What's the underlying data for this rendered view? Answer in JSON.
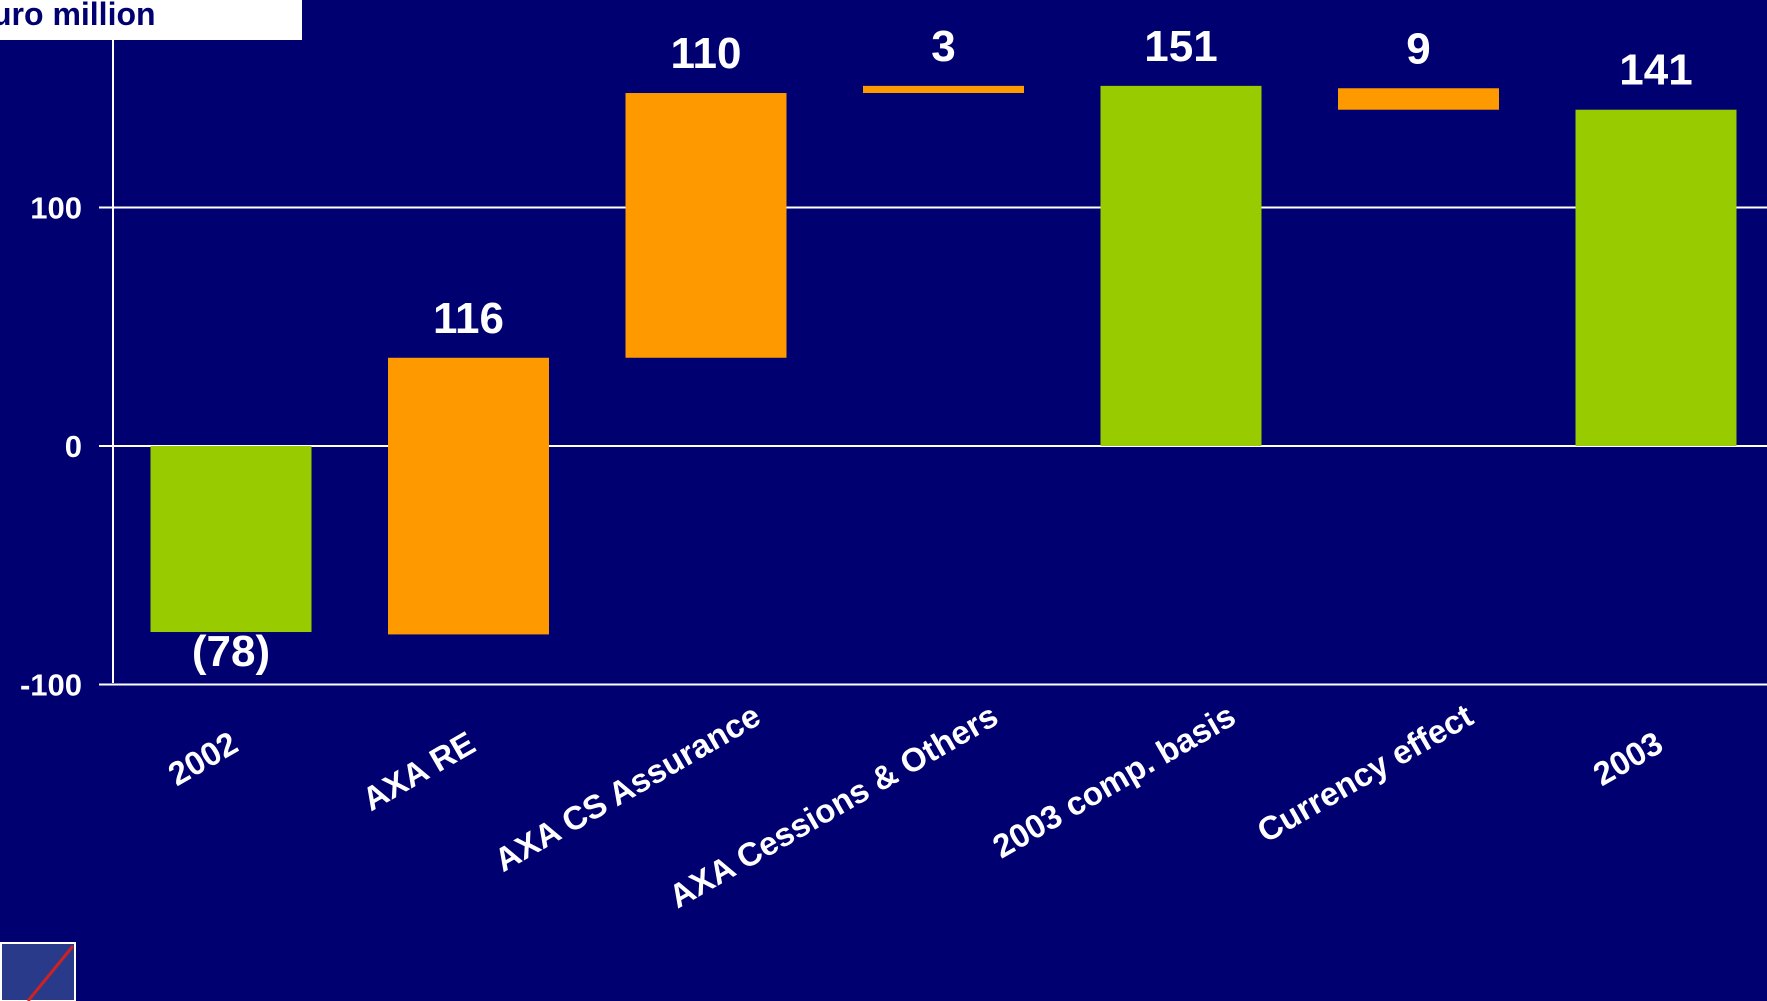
{
  "chart_data": {
    "type": "bar",
    "subtype": "waterfall",
    "unit_label": "uro million",
    "y_axis": {
      "ticks": [
        100,
        0,
        -100
      ],
      "tick_labels": [
        "100",
        "0",
        "-100"
      ],
      "ylim": [
        -100,
        172
      ],
      "grid": true
    },
    "categories": [
      "2002",
      "AXA RE",
      "AXA CS Assurance",
      "AXA Cessions & Others",
      "2003 comp. basis",
      "Currency effect",
      "2003"
    ],
    "bars": [
      {
        "category": "2002",
        "kind": "total",
        "start": 0,
        "end": -78,
        "label": "(78)"
      },
      {
        "category": "AXA RE",
        "kind": "change",
        "start": -79,
        "end": 37,
        "label": "116"
      },
      {
        "category": "AXA CS Assurance",
        "kind": "change",
        "start": 37,
        "end": 148,
        "label": "110"
      },
      {
        "category": "AXA Cessions & Others",
        "kind": "change",
        "start": 148,
        "end": 151,
        "label": "3"
      },
      {
        "category": "2003 comp. basis",
        "kind": "total",
        "start": 0,
        "end": 151,
        "label": "151"
      },
      {
        "category": "Currency effect",
        "kind": "change",
        "start": 150,
        "end": 141,
        "label": "9"
      },
      {
        "category": "2003",
        "kind": "total",
        "start": 0,
        "end": 141,
        "label": "141"
      }
    ],
    "colors": {
      "background": "#000070",
      "total": "#99cc00",
      "change": "#ff9900",
      "text": "#ffffff",
      "grid": "#ffffff"
    }
  }
}
